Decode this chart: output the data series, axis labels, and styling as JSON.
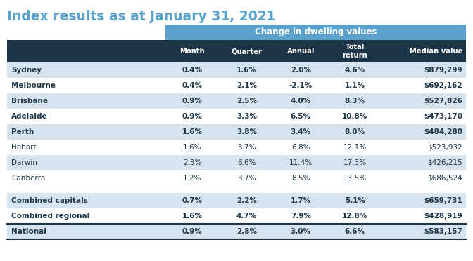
{
  "title": "Index results as at January 31, 2021",
  "title_color": "#5ba3cc",
  "span_header": "Change in dwelling values",
  "span_header_bg": "#5ba3cc",
  "col_header_bg": "#1d3547",
  "col_header_color": "#ffffff",
  "columns": [
    "",
    "Month",
    "Quarter",
    "Annual",
    "Total\nreturn",
    "Median value"
  ],
  "rows": [
    [
      "Sydney",
      "0.4%",
      "1.6%",
      "2.0%",
      "4.6%",
      "$879,299"
    ],
    [
      "Melbourne",
      "0.4%",
      "2.1%",
      "-2.1%",
      "1.1%",
      "$692,162"
    ],
    [
      "Brisbane",
      "0.9%",
      "2.5%",
      "4.0%",
      "8.3%",
      "$527,826"
    ],
    [
      "Adelaide",
      "0.9%",
      "3.3%",
      "6.5%",
      "10.8%",
      "$473,170"
    ],
    [
      "Perth",
      "1.6%",
      "3.8%",
      "3.4%",
      "8.0%",
      "$484,280"
    ],
    [
      "Hobart",
      "1.6%",
      "3.7%",
      "6.8%",
      "12.1%",
      "$523,932"
    ],
    [
      "Darwin",
      "2.3%",
      "6.6%",
      "11.4%",
      "17.3%",
      "$426,215"
    ],
    [
      "Canberra",
      "1.2%",
      "3.7%",
      "8.5%",
      "13.5%",
      "$686,524"
    ],
    [
      "",
      "",
      "",
      "",
      "",
      ""
    ],
    [
      "Combined capitals",
      "0.7%",
      "2.2%",
      "1.7%",
      "5.1%",
      "$659,731"
    ],
    [
      "Combined regional",
      "1.6%",
      "4.7%",
      "7.9%",
      "12.8%",
      "$428,919"
    ],
    [
      "National",
      "0.9%",
      "2.8%",
      "3.0%",
      "6.6%",
      "$583,157"
    ]
  ],
  "bold_rows": [
    "Sydney",
    "Melbourne",
    "Brisbane",
    "Adelaide",
    "Perth",
    "Combined capitals",
    "Combined regional",
    "National"
  ],
  "row_colors_even": "#d6e4f0",
  "row_colors_odd": "#ffffff",
  "separator_color": "#ffffff",
  "text_color": "#1d3547",
  "national_row_idx": 11,
  "separator_row_idx": 8
}
